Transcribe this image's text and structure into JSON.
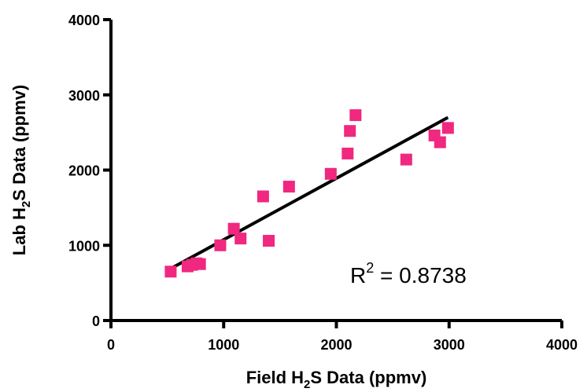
{
  "chart_data": {
    "type": "scatter",
    "xlabel": {
      "pre": "Field H",
      "sub": "2",
      "post": "S Data (ppmv)"
    },
    "ylabel": {
      "pre": "Lab H",
      "sub": "2",
      "post": "S Data (ppmv)"
    },
    "xlim": [
      0,
      4000
    ],
    "ylim": [
      0,
      4000
    ],
    "xticks": [
      "0",
      "1000",
      "2000",
      "3000",
      "4000"
    ],
    "yticks": [
      "0",
      "1000",
      "2000",
      "3000",
      "4000"
    ],
    "marker_color": "#f0287f",
    "line_color": "#000000",
    "points": [
      [
        530,
        650
      ],
      [
        680,
        720
      ],
      [
        720,
        740
      ],
      [
        760,
        760
      ],
      [
        790,
        750
      ],
      [
        970,
        1000
      ],
      [
        1090,
        1220
      ],
      [
        1150,
        1090
      ],
      [
        1350,
        1650
      ],
      [
        1400,
        1060
      ],
      [
        1580,
        1780
      ],
      [
        1950,
        1950
      ],
      [
        2100,
        2220
      ],
      [
        2120,
        2520
      ],
      [
        2170,
        2730
      ],
      [
        2620,
        2140
      ],
      [
        2870,
        2460
      ],
      [
        2920,
        2370
      ],
      [
        2990,
        2560
      ]
    ],
    "fit_line": {
      "x": [
        530,
        2990
      ],
      "y": [
        690,
        2700
      ]
    },
    "annotation": {
      "base": "R",
      "sup": "2",
      "rest": " = 0.8738"
    }
  }
}
